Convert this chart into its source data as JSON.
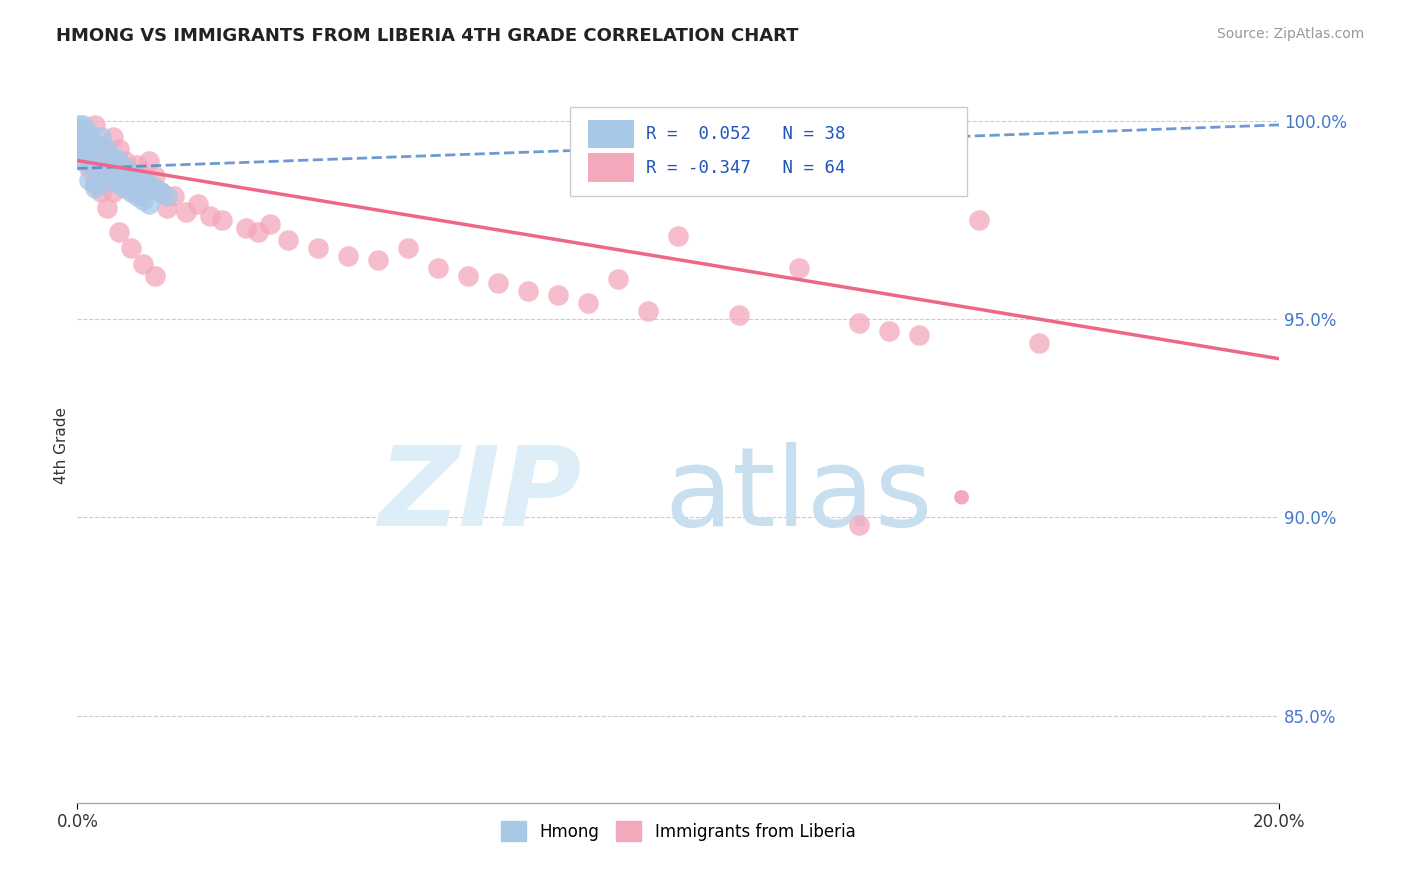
{
  "title": "HMONG VS IMMIGRANTS FROM LIBERIA 4TH GRADE CORRELATION CHART",
  "source": "Source: ZipAtlas.com",
  "ylabel": "4th Grade",
  "xlim": [
    0.0,
    0.2
  ],
  "ylim": [
    0.828,
    1.008
  ],
  "yticks": [
    0.85,
    0.9,
    0.95,
    1.0
  ],
  "ytick_labels": [
    "85.0%",
    "90.0%",
    "95.0%",
    "100.0%"
  ],
  "legend_label1": "Hmong",
  "legend_label2": "Immigrants from Liberia",
  "hmong_color": "#a8c8e8",
  "liberia_color": "#f4a8bc",
  "hmong_line_color": "#5588cc",
  "liberia_line_color": "#ee6688",
  "hmong_x": [
    0.0005,
    0.001,
    0.001,
    0.001,
    0.001,
    0.002,
    0.002,
    0.002,
    0.003,
    0.003,
    0.003,
    0.004,
    0.004,
    0.004,
    0.005,
    0.005,
    0.006,
    0.006,
    0.007,
    0.007,
    0.008,
    0.008,
    0.009,
    0.009,
    0.01,
    0.01,
    0.011,
    0.011,
    0.012,
    0.012,
    0.013,
    0.014,
    0.0003,
    0.0003,
    0.0003,
    0.0007,
    0.0007,
    0.015
  ],
  "hmong_y": [
    0.998,
    0.996,
    0.993,
    0.999,
    0.99,
    0.997,
    0.991,
    0.985,
    0.994,
    0.988,
    0.983,
    0.996,
    0.99,
    0.984,
    0.993,
    0.987,
    0.991,
    0.985,
    0.99,
    0.984,
    0.988,
    0.983,
    0.987,
    0.982,
    0.986,
    0.981,
    0.985,
    0.98,
    0.984,
    0.979,
    0.983,
    0.982,
    0.999,
    0.995,
    0.991,
    0.997,
    0.993,
    0.981
  ],
  "liberia_x": [
    0.001,
    0.001,
    0.002,
    0.002,
    0.003,
    0.003,
    0.003,
    0.004,
    0.004,
    0.004,
    0.005,
    0.005,
    0.006,
    0.006,
    0.006,
    0.007,
    0.007,
    0.008,
    0.008,
    0.009,
    0.01,
    0.01,
    0.011,
    0.012,
    0.012,
    0.013,
    0.014,
    0.015,
    0.016,
    0.018,
    0.02,
    0.022,
    0.024,
    0.028,
    0.03,
    0.032,
    0.035,
    0.04,
    0.045,
    0.05,
    0.055,
    0.06,
    0.065,
    0.07,
    0.075,
    0.08,
    0.085,
    0.09,
    0.095,
    0.1,
    0.11,
    0.12,
    0.13,
    0.135,
    0.003,
    0.005,
    0.007,
    0.009,
    0.011,
    0.013,
    0.14,
    0.15,
    0.16,
    0.13
  ],
  "liberia_y": [
    0.997,
    0.993,
    0.996,
    0.988,
    0.999,
    0.992,
    0.985,
    0.994,
    0.988,
    0.982,
    0.991,
    0.985,
    0.996,
    0.989,
    0.982,
    0.993,
    0.986,
    0.99,
    0.983,
    0.987,
    0.989,
    0.982,
    0.986,
    0.99,
    0.983,
    0.986,
    0.982,
    0.978,
    0.981,
    0.977,
    0.979,
    0.976,
    0.975,
    0.973,
    0.972,
    0.974,
    0.97,
    0.968,
    0.966,
    0.965,
    0.968,
    0.963,
    0.961,
    0.959,
    0.957,
    0.956,
    0.954,
    0.96,
    0.952,
    0.971,
    0.951,
    0.963,
    0.949,
    0.947,
    0.984,
    0.978,
    0.972,
    0.968,
    0.964,
    0.961,
    0.946,
    0.975,
    0.944,
    0.898
  ],
  "hmong_line_x0": 0.0,
  "hmong_line_x1": 0.2,
  "hmong_line_y0": 0.988,
  "hmong_line_y1": 0.999,
  "liberia_line_x0": 0.0,
  "liberia_line_x1": 0.2,
  "liberia_line_y0": 0.99,
  "liberia_line_y1": 0.94
}
